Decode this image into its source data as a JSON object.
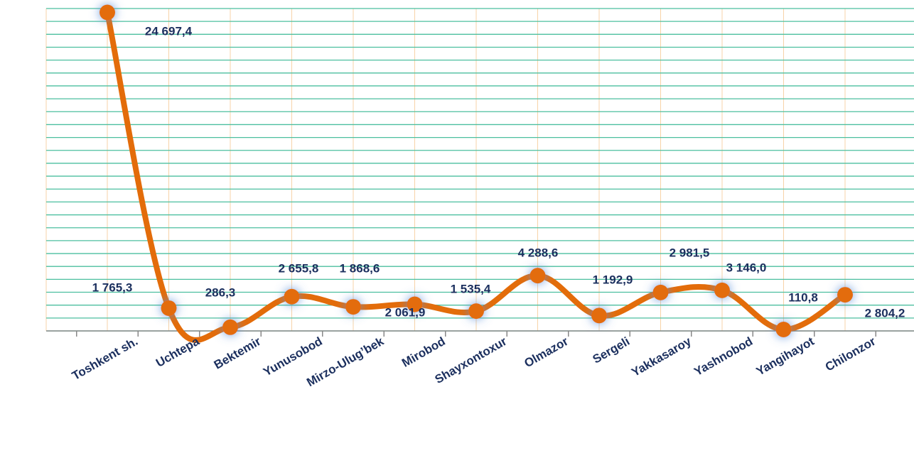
{
  "chart_data": {
    "type": "line",
    "categories": [
      "Toshkent sh.",
      "Uchtepa",
      "Bektemir",
      "Yunusobod",
      "Mirzo-Ulug’bek",
      "Mirobod",
      "Shayxontoxur",
      "Olmazor",
      "Sergeli",
      "Yakkasaroy",
      "Yashnobod",
      "Yangihayot",
      "Chilonzor"
    ],
    "series": [
      {
        "color": "#e36c0a",
        "values": [
          24697.4,
          1765.3,
          286.3,
          2655.8,
          1868.6,
          2061.9,
          1535.4,
          4288.6,
          1192.9,
          2981.5,
          3146.0,
          110.8,
          2804.2
        ],
        "value_labels": [
          "24 697,4",
          "1 765,3",
          "286,3",
          "2 655,8",
          "1 868,6",
          "2 061,9",
          "1 535,4",
          "4 288,6",
          "1 192,9",
          "2 981,5",
          "3 146,0",
          "110,8",
          "2 804,2"
        ]
      }
    ],
    "ylim": [
      0,
      25000
    ],
    "yticks": [
      0,
      1000,
      2000,
      3000,
      4000,
      5000,
      6000,
      7000,
      8000,
      9000,
      10000,
      11000,
      12000,
      13000,
      14000,
      15000,
      16000,
      17000,
      18000,
      19000,
      20000,
      21000,
      22000,
      23000,
      24000,
      25000
    ],
    "grid": true
  }
}
